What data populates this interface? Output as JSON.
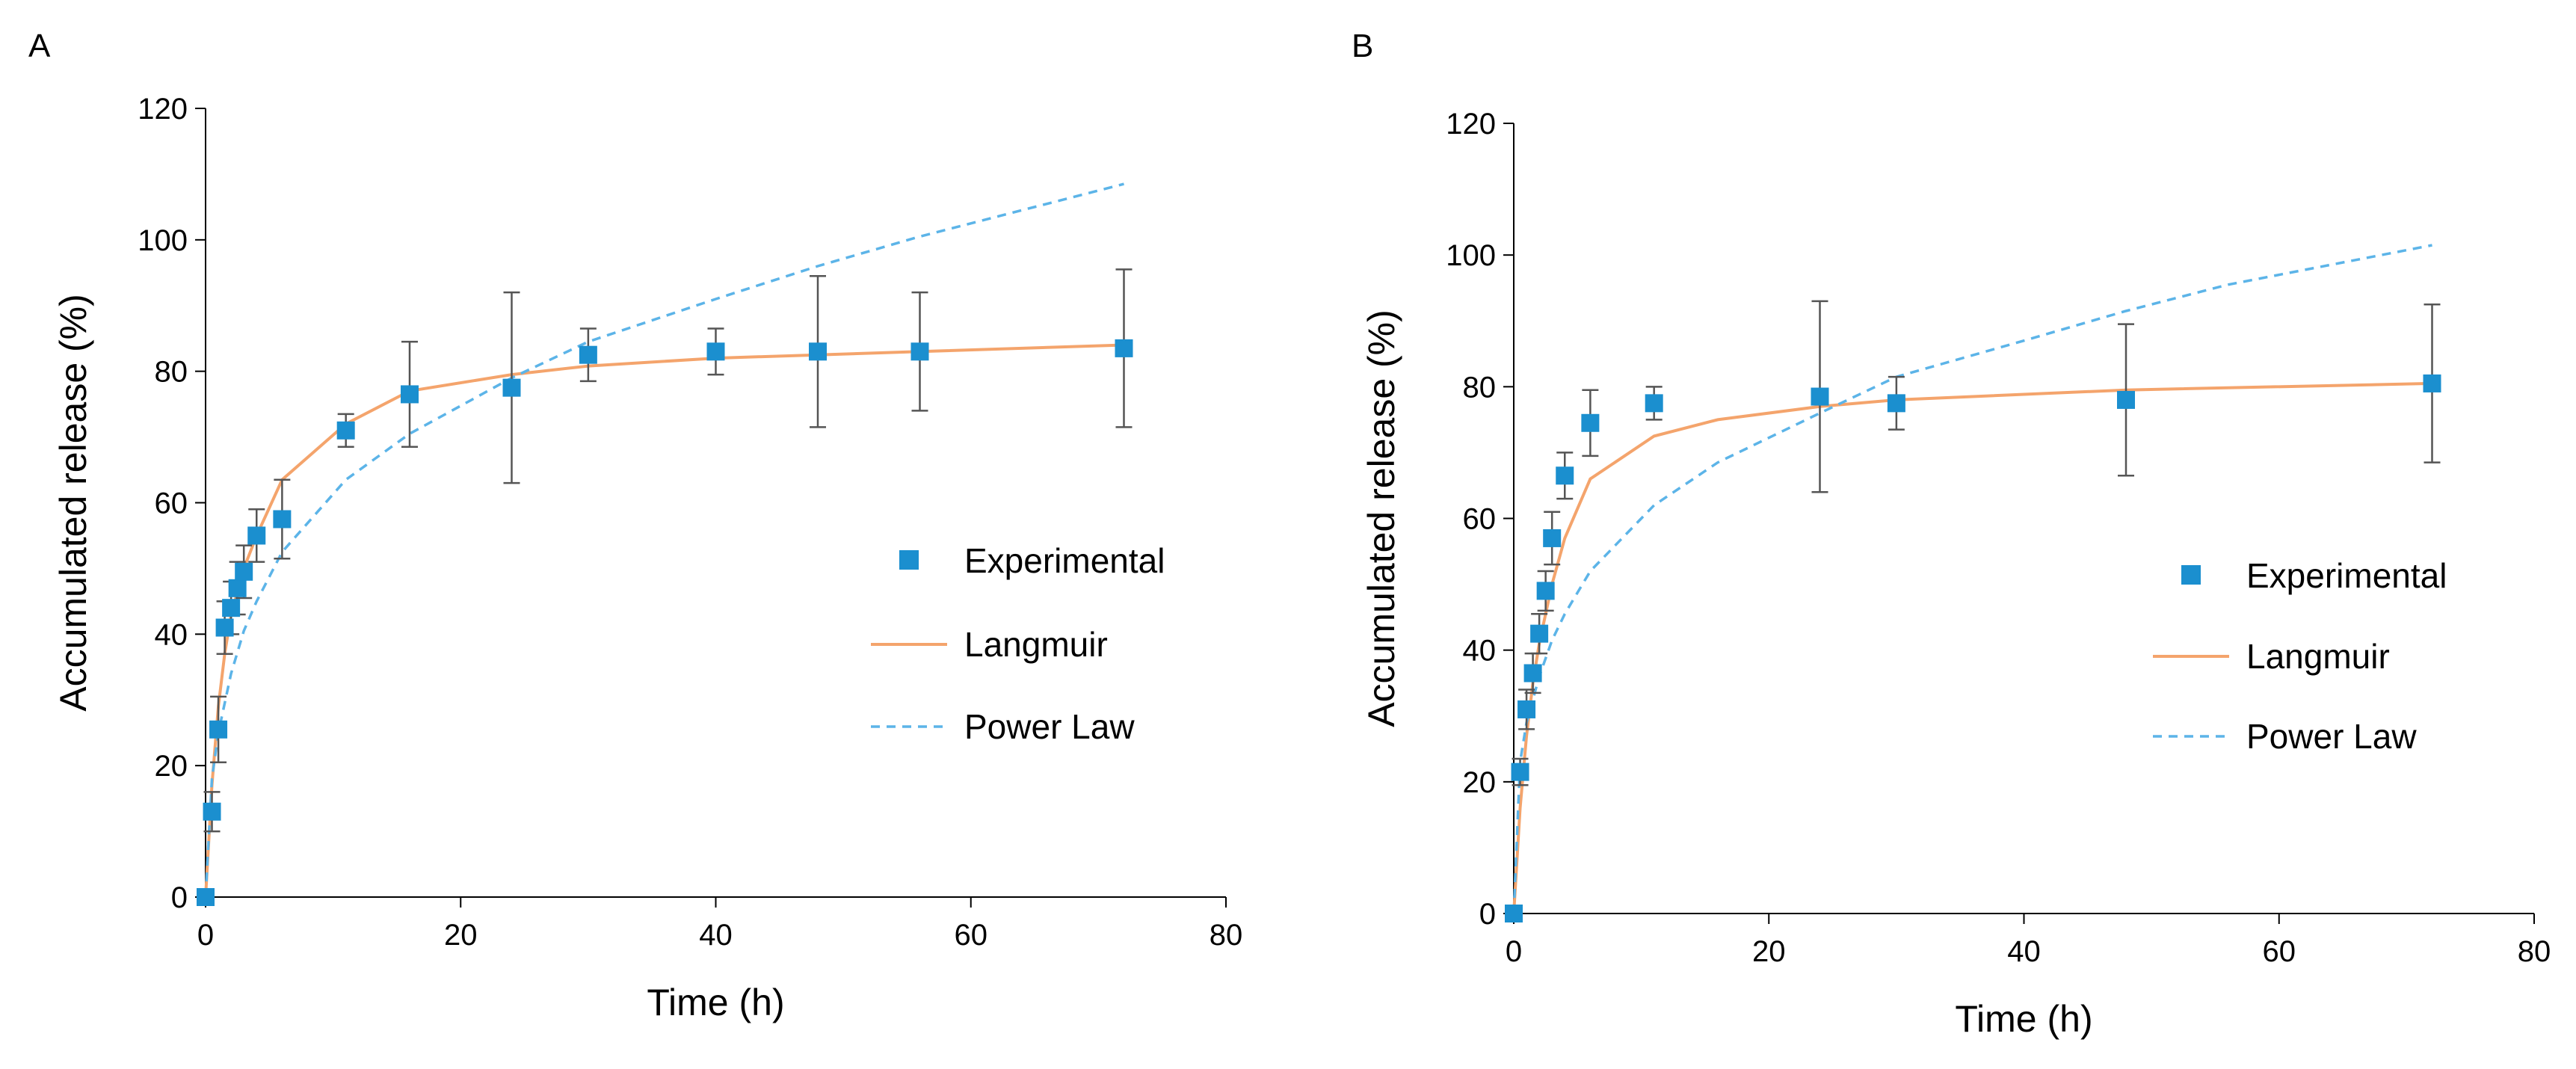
{
  "colors": {
    "experimental": "#1b8fcf",
    "langmuir": "#f4a46c",
    "power_law": "#5cb4e8",
    "axis": "#000000",
    "errorbar": "#555555"
  },
  "chart_data": [
    {
      "panel": "A",
      "type": "scatter",
      "xlabel": "Time (h)",
      "ylabel": "Accumulated release (%)",
      "xlim": [
        0,
        80
      ],
      "ylim": [
        0,
        120
      ],
      "xticks": [
        0,
        20,
        40,
        60,
        80
      ],
      "yticks": [
        0,
        20,
        40,
        60,
        80,
        100,
        120
      ],
      "grid": false,
      "legend_position": "center-right",
      "series": [
        {
          "name": "Experimental",
          "kind": "markers",
          "x": [
            0,
            0.5,
            1,
            1.5,
            2,
            2.5,
            3,
            4,
            6,
            11,
            16,
            24,
            30,
            40,
            48,
            56,
            72
          ],
          "y": [
            0,
            13,
            25.5,
            41,
            44,
            47,
            49.5,
            55,
            57.5,
            71,
            76.5,
            77.5,
            82.5,
            83,
            83,
            83,
            83.5
          ],
          "err": [
            0,
            3,
            5,
            4,
            4,
            4,
            4,
            4,
            6,
            2.5,
            8,
            14.5,
            4,
            3.5,
            11.5,
            9,
            12
          ]
        },
        {
          "name": "Langmuir",
          "kind": "solid",
          "x": [
            0,
            0.5,
            1,
            1.5,
            2,
            3,
            4,
            6,
            11,
            16,
            24,
            30,
            40,
            48,
            56,
            72
          ],
          "y": [
            0,
            17,
            29,
            37,
            43,
            50,
            55,
            63.5,
            72,
            77,
            79.5,
            80.8,
            82,
            82.5,
            83,
            84
          ]
        },
        {
          "name": "Power Law",
          "kind": "dashed",
          "x": [
            0,
            0.5,
            1,
            2,
            3,
            4,
            6,
            11,
            16,
            24,
            30,
            40,
            48,
            56,
            72
          ],
          "y": [
            0,
            18,
            25,
            34,
            40.5,
            45,
            52.5,
            63.5,
            70.5,
            79,
            84.5,
            91,
            96,
            100.5,
            108.5
          ]
        }
      ]
    },
    {
      "panel": "B",
      "type": "scatter",
      "xlabel": "Time (h)",
      "ylabel": "Accumulated release (%)",
      "xlim": [
        0,
        80
      ],
      "ylim": [
        0,
        120
      ],
      "xticks": [
        0,
        20,
        40,
        60,
        80
      ],
      "yticks": [
        0,
        20,
        40,
        60,
        80,
        100,
        120
      ],
      "grid": false,
      "legend_position": "center-right",
      "series": [
        {
          "name": "Experimental",
          "kind": "markers",
          "x": [
            0,
            0.5,
            1,
            1.5,
            2,
            2.5,
            3,
            4,
            6,
            11,
            24,
            30,
            48,
            72
          ],
          "y": [
            0,
            21.5,
            31,
            36.5,
            42.5,
            49,
            57,
            66.5,
            74.5,
            77.5,
            78.5,
            77.5,
            78,
            80.5
          ],
          "err": [
            0,
            2,
            3,
            3,
            3,
            3,
            4,
            3.5,
            5,
            2.5,
            14.5,
            4,
            11.5,
            12
          ]
        },
        {
          "name": "Langmuir",
          "kind": "solid",
          "x": [
            0,
            0.5,
            1,
            1.5,
            2,
            3,
            4,
            6,
            11,
            16,
            24,
            30,
            48,
            72
          ],
          "y": [
            0,
            16,
            27,
            35,
            41,
            50,
            57,
            66,
            72.5,
            75,
            77,
            78,
            79.5,
            80.5
          ]
        },
        {
          "name": "Power Law",
          "kind": "dashed",
          "x": [
            0,
            0.5,
            1,
            2,
            3,
            4,
            6,
            11,
            16,
            24,
            30,
            40,
            48,
            56,
            72
          ],
          "y": [
            0,
            23,
            29,
            36,
            41.5,
            45.5,
            52,
            62,
            68.5,
            76,
            81.5,
            87,
            91.5,
            95.5,
            101.5
          ]
        }
      ]
    }
  ]
}
